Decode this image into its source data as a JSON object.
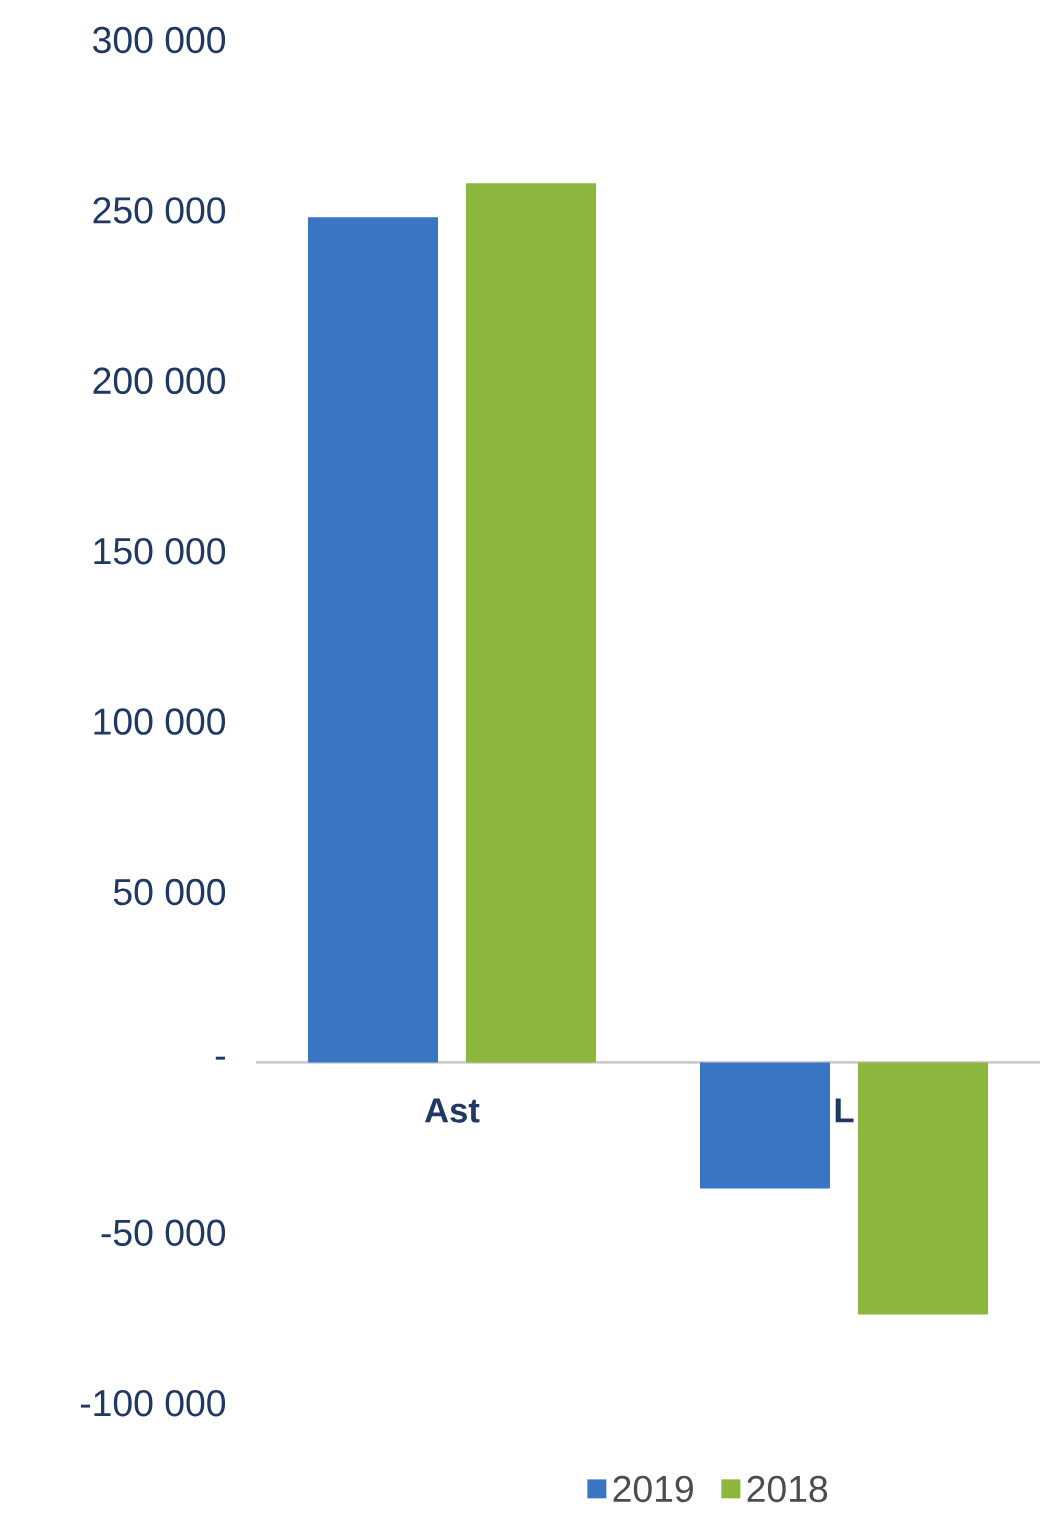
{
  "chart_data": {
    "type": "bar",
    "categories": [
      "Ast",
      "L"
    ],
    "series": [
      {
        "name": "2019",
        "color": "#3a75c4",
        "values": [
          248000,
          -37000
        ]
      },
      {
        "name": "2018",
        "color": "#8db63c",
        "values": [
          258000,
          -74000
        ]
      }
    ],
    "ylim": [
      -100000,
      300000
    ],
    "yticks": [
      {
        "value": -100000,
        "label": "-100 000"
      },
      {
        "value": -50000,
        "label": "-50 000"
      },
      {
        "value": 0,
        "label": "-"
      },
      {
        "value": 50000,
        "label": "50 000"
      },
      {
        "value": 100000,
        "label": "100 000"
      },
      {
        "value": 150000,
        "label": "150 000"
      },
      {
        "value": 200000,
        "label": "200 000"
      },
      {
        "value": 250000,
        "label": "250 000"
      },
      {
        "value": 300000,
        "label": "300 000"
      }
    ],
    "grid": false,
    "legend": "bottom"
  }
}
